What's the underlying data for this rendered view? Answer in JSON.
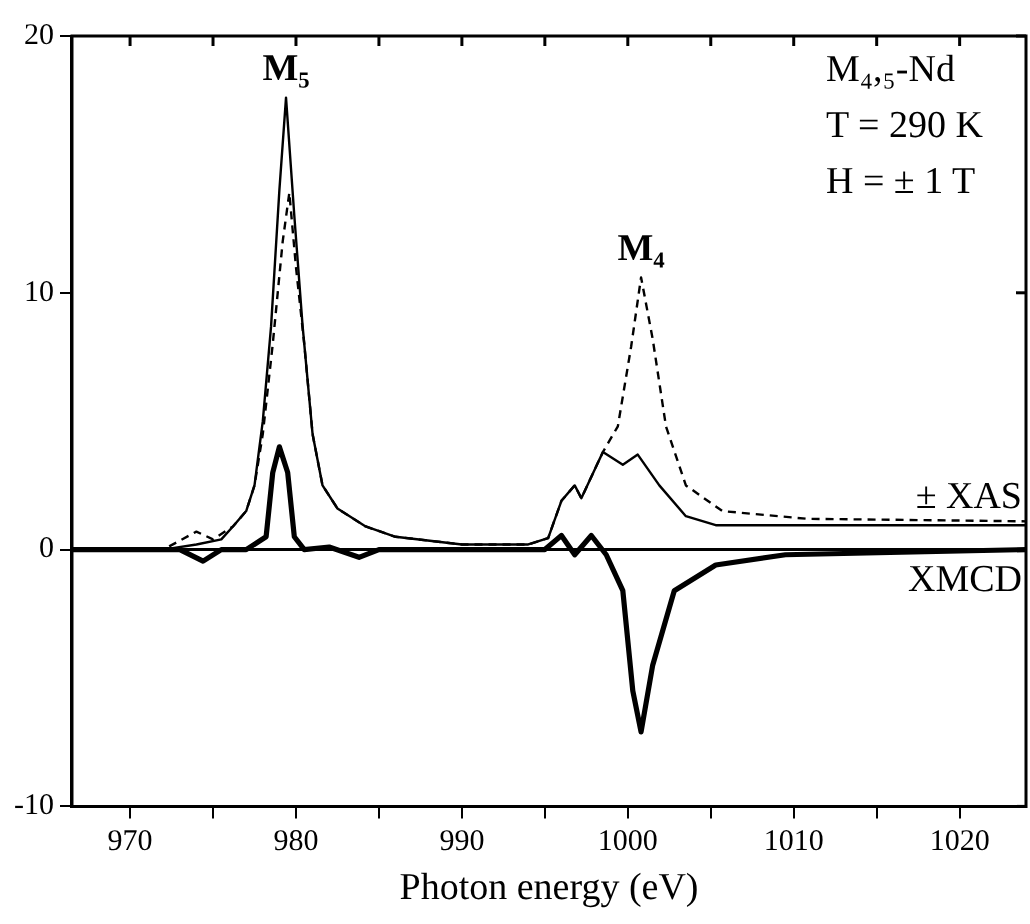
{
  "chart_data": {
    "type": "line",
    "xlabel": "Photon energy (eV)",
    "xlim": [
      966.5,
      1024
    ],
    "xticks": [
      970,
      {
        "value": 975,
        "label": null
      },
      980,
      {
        "value": 985,
        "label": null
      },
      990,
      {
        "value": 995,
        "label": null
      },
      1000,
      {
        "value": 1005,
        "label": null
      },
      1010,
      {
        "value": 1015,
        "label": null
      },
      1020
    ],
    "ylim": [
      -10,
      20
    ],
    "yticks": [
      -10,
      0,
      10,
      20
    ],
    "grid": false,
    "legend": false,
    "marker": "none",
    "series": [
      {
        "name": "± XAS",
        "color": "#000000",
        "line_style": "solid",
        "x": [
          966.5,
          972,
          974,
          975.5,
          976.2,
          977,
          977.5,
          978,
          978.5,
          979,
          979.4,
          979.9,
          980.4,
          981,
          981.6,
          982.5,
          984.2,
          986,
          990,
          994,
          995.2,
          996,
          996.8,
          997.2,
          998.5,
          999.7,
          1000.6,
          1001.9,
          1003.5,
          1005.3,
          1010,
          1024
        ],
        "values": [
          0,
          0,
          0.2,
          0.4,
          0.9,
          1.5,
          2.5,
          5,
          8.7,
          14,
          17.6,
          13,
          8.7,
          4.5,
          2.5,
          1.6,
          0.9,
          0.5,
          0.2,
          0.2,
          0.45,
          1.9,
          2.5,
          2,
          3.8,
          3.3,
          3.7,
          2.5,
          1.3,
          0.95,
          0.95,
          0.95
        ]
      },
      {
        "color": "#000000",
        "line_style": "dashed",
        "x": [
          966.5,
          972,
          974,
          975,
          976.2,
          977,
          977.5,
          978,
          978.6,
          979.2,
          979.6,
          980,
          980.5,
          981,
          981.6,
          982.5,
          984.2,
          986,
          990,
          994,
          995.2,
          996,
          996.8,
          997.2,
          998.5,
          999.4,
          1000.2,
          1000.8,
          1001.5,
          1002.3,
          1003.5,
          1005.7,
          1010.8,
          1024
        ],
        "values": [
          0,
          0,
          0.7,
          0.4,
          0.9,
          1.5,
          2.5,
          4.5,
          8,
          12,
          13.9,
          11,
          8,
          4.5,
          2.5,
          1.6,
          0.9,
          0.5,
          0.2,
          0.2,
          0.45,
          1.9,
          2.5,
          2,
          3.8,
          4.8,
          7.9,
          10.6,
          8.2,
          4.8,
          2.5,
          1.5,
          1.2,
          1.1
        ]
      },
      {
        "name": "XMCD",
        "color": "#000000",
        "line_style": "solid",
        "x": [
          966.5,
          973,
          974.4,
          975.5,
          977,
          978.2,
          978.6,
          979,
          979.5,
          979.9,
          980.5,
          982,
          983.8,
          985,
          990,
          995,
          996,
          996.8,
          997.8,
          998.7,
          999.7,
          1000.3,
          1000.8,
          1001.5,
          1002.8,
          1005.3,
          1009.5,
          1024
        ],
        "values": [
          0,
          0,
          -0.45,
          0,
          0,
          0.5,
          3,
          4,
          3,
          0.5,
          0,
          0.1,
          -0.3,
          0,
          0,
          0,
          0.55,
          -0.2,
          0.55,
          -0.2,
          -1.6,
          -5.5,
          -7.1,
          -4.5,
          -1.6,
          -0.6,
          -0.2,
          0
        ]
      }
    ],
    "ref_lines": [
      {
        "axis": "y",
        "value": 0,
        "color": "#000000"
      }
    ],
    "annotations": [
      {
        "text": "M₅",
        "x": 979.4,
        "y": 17.6
      },
      {
        "text": "M₄",
        "x": 1000.8,
        "y": 10.6
      },
      "M₄,₅-Nd",
      "T = 290 K",
      "H = ± 1 T"
    ]
  }
}
